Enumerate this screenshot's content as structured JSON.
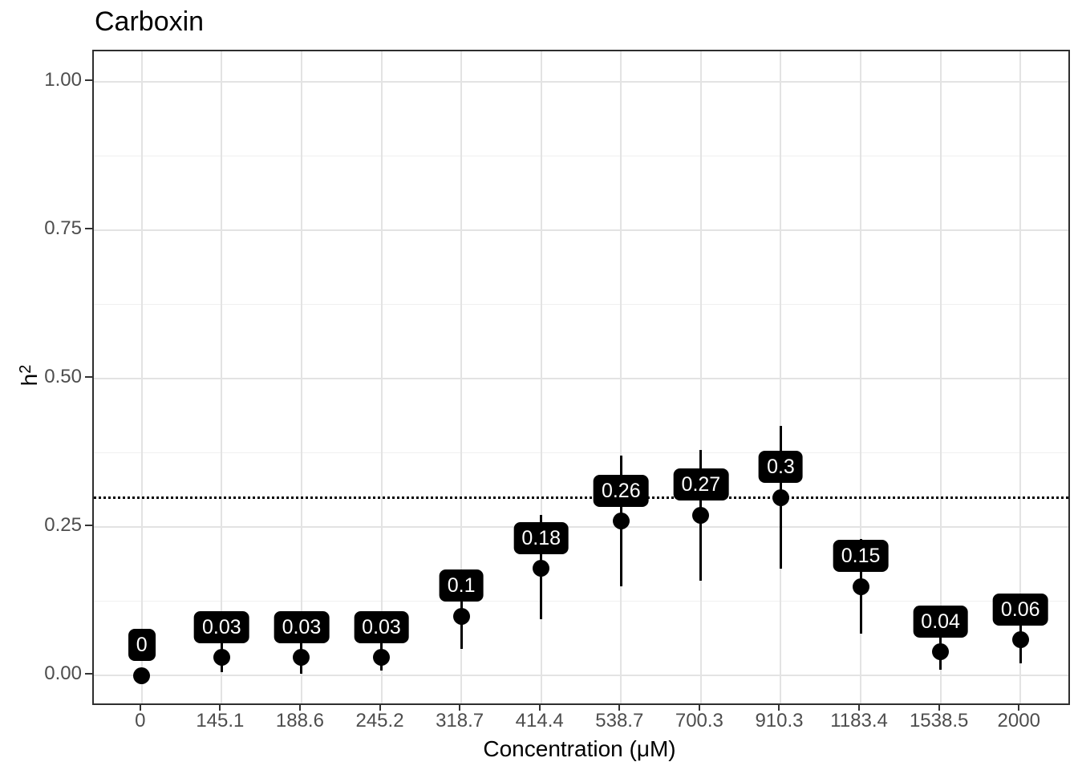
{
  "chart_data": {
    "type": "scatter",
    "title": "Carboxin",
    "xlabel": "Concentration (μM)",
    "ylabel_base": "h",
    "ylabel_sup": "2",
    "categories": [
      "0",
      "145.1",
      "188.6",
      "245.2",
      "318.7",
      "414.4",
      "538.7",
      "700.3",
      "910.3",
      "1183.4",
      "1538.5",
      "2000"
    ],
    "values": [
      0,
      0.03,
      0.03,
      0.03,
      0.1,
      0.18,
      0.26,
      0.27,
      0.3,
      0.15,
      0.04,
      0.06
    ],
    "point_labels": [
      "0",
      "0.03",
      "0.03",
      "0.03",
      "0.1",
      "0.18",
      "0.26",
      "0.27",
      "0.3",
      "0.15",
      "0.04",
      "0.06"
    ],
    "error_low": [
      null,
      0.005,
      0.003,
      0.009,
      0.045,
      0.095,
      0.15,
      0.16,
      0.18,
      0.07,
      0.01,
      0.02
    ],
    "error_high": [
      null,
      0.055,
      0.054,
      0.054,
      0.155,
      0.27,
      0.37,
      0.38,
      0.42,
      0.23,
      0.076,
      0.095
    ],
    "reference_line_y": 0.3,
    "ylim": [
      -0.047,
      1.051
    ],
    "yticks": [
      {
        "label": "1.00",
        "value": 1.0
      },
      {
        "label": "0.75",
        "value": 0.75
      },
      {
        "label": "0.50",
        "value": 0.5
      },
      {
        "label": "0.25",
        "value": 0.25
      },
      {
        "label": "0.00",
        "value": 0.0
      }
    ],
    "minor_gridlines_y": [
      0.875,
      0.625,
      0.375,
      0.125
    ],
    "grid": "on",
    "legend": "none"
  },
  "colors": {
    "point": "#000000",
    "error_bar": "#000000",
    "label_bg": "#000000",
    "label_text": "#FFFFFF",
    "grid_major": "#E3E3E3",
    "grid_minor": "#F0F0F0",
    "panel_border": "#2E2E2E",
    "tick_text": "#4D4D4D",
    "axis_title_text": "#000000",
    "reference_line": "#000000"
  }
}
